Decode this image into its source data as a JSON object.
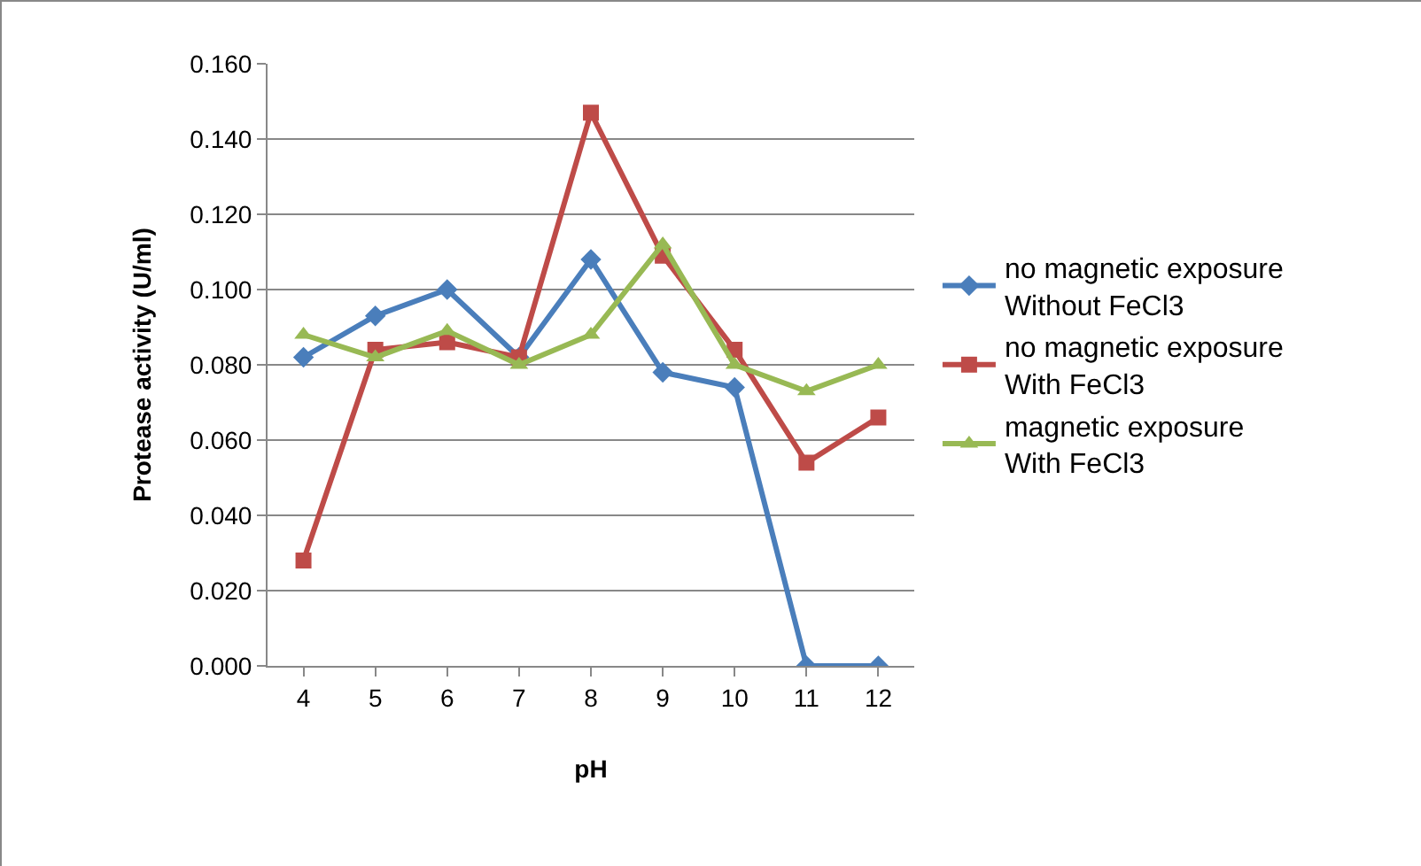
{
  "chart_data": {
    "type": "line",
    "xlabel": "pH",
    "ylabel": "Protease activity (U/ml)",
    "categories": [
      "4",
      "5",
      "6",
      "7",
      "8",
      "9",
      "10",
      "11",
      "12"
    ],
    "series": [
      {
        "name": "no magnetic exposure\nWithout FeCl3",
        "color": "#4a7ebb",
        "marker": "diamond",
        "values": [
          0.082,
          0.093,
          0.1,
          0.082,
          0.108,
          0.078,
          0.074,
          0.0,
          0.0
        ]
      },
      {
        "name": "no magnetic exposure\nWith FeCl3",
        "color": "#be4b48",
        "marker": "square",
        "values": [
          0.028,
          0.084,
          0.086,
          0.082,
          0.147,
          0.109,
          0.084,
          0.054,
          0.066
        ]
      },
      {
        "name": "magnetic exposure\nWith FeCl3",
        "color": "#98b954",
        "marker": "triangle",
        "values": [
          0.088,
          0.082,
          0.089,
          0.08,
          0.088,
          0.112,
          0.08,
          0.073,
          0.08
        ]
      }
    ],
    "ylim": [
      0,
      0.16
    ],
    "yticks": [
      {
        "value": 0,
        "label": "0.000"
      },
      {
        "value": 0.02,
        "label": "0.020"
      },
      {
        "value": 0.04,
        "label": "0.040"
      },
      {
        "value": 0.06,
        "label": "0.060"
      },
      {
        "value": 0.08,
        "label": "0.080"
      },
      {
        "value": 0.1,
        "label": "0.100"
      },
      {
        "value": 0.12,
        "label": "0.120"
      },
      {
        "value": 0.14,
        "label": "0.140"
      },
      {
        "value": 0.16,
        "label": "0.160"
      }
    ],
    "grid": "y",
    "legend": "right"
  }
}
